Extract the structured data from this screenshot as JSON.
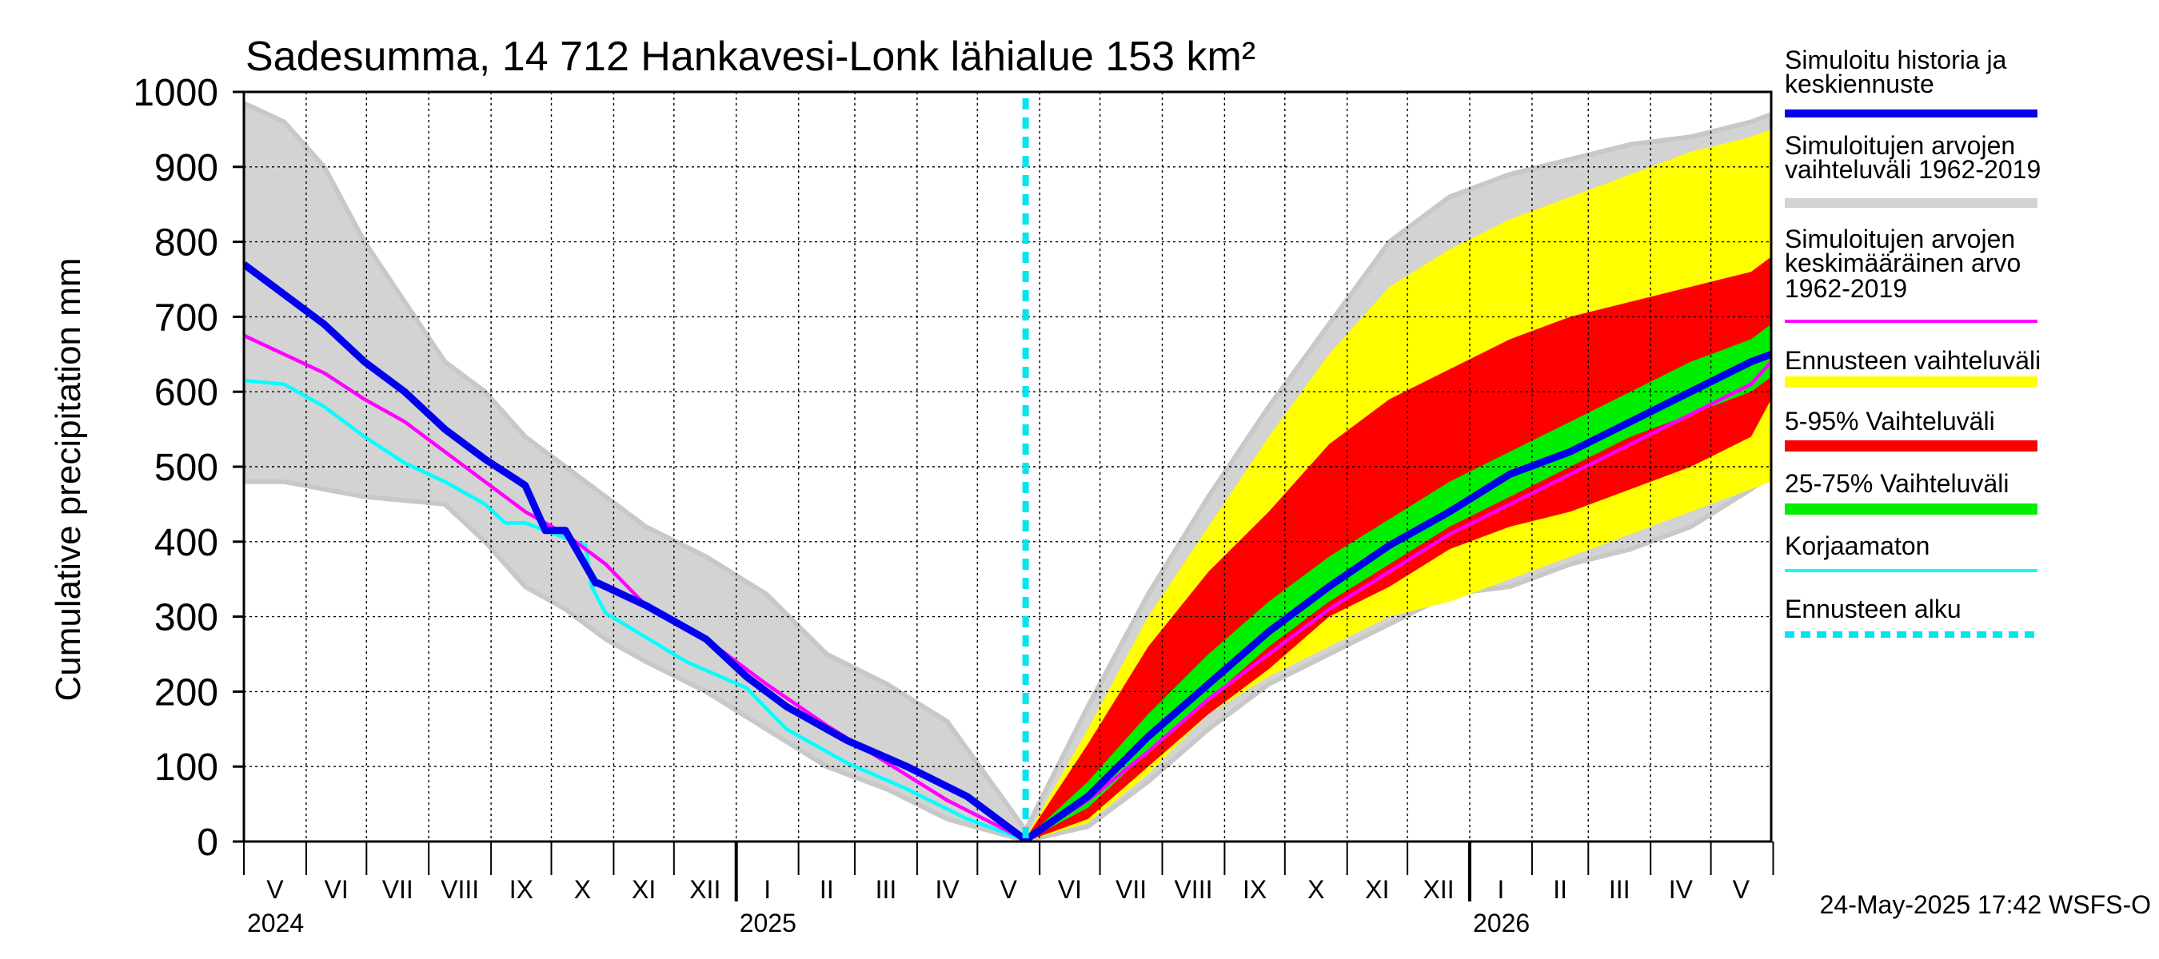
{
  "colors": {
    "forecast_mean": "#0000ee",
    "historical_range": "#d3d3d3",
    "historical_mean": "#ff00ff",
    "forecast_range": "#ffff00",
    "p5_95": "#ff0000",
    "p25_75": "#00ee00",
    "uncorrected": "#00ffff",
    "forecast_start": "#00e5ee"
  },
  "chart_data": {
    "type": "line",
    "title": "Sadesumma, 14 712 Hankavesi-Lonk lähialue 153 km²",
    "ylabel": "Cumulative precipitation   mm",
    "ylim": [
      0,
      1000
    ],
    "yticks": [
      "0",
      "100",
      "200",
      "300",
      "400",
      "500",
      "600",
      "700",
      "800",
      "900",
      "1000"
    ],
    "months": [
      "V",
      "VI",
      "VII",
      "VIII",
      "IX",
      "X",
      "XI",
      "XII",
      "I",
      "II",
      "III",
      "IV",
      "V",
      "VI",
      "VII",
      "VIII",
      "IX",
      "X",
      "XI",
      "XII",
      "I",
      "II",
      "III",
      "IV",
      "V"
    ],
    "years": [
      "2024",
      "2025",
      "2026"
    ],
    "timestamp": "24-May-2025 17:42 WSFS-O",
    "forecast_start_day": 389,
    "legend": [
      "Simuloitu historia ja keskiennuste",
      "Simuloitujen arvojen vaihteluväli 1962-2019",
      "Simuloitujen arvojen keskimääräinen arvo 1962-2019",
      "Ennusteen vaihteluväli",
      "5-95% Vaihteluväli",
      "25-75% Vaihteluväli",
      "Korjaamaton",
      "Ennusteen alku"
    ],
    "series": [
      {
        "name": "Simuloitu historia ja keskiennuste",
        "days": [
          0,
          20,
          40,
          60,
          80,
          100,
          120,
          140,
          150,
          160,
          175,
          176,
          200,
          230,
          250,
          270,
          300,
          330,
          360,
          389,
          420,
          450,
          480,
          510,
          540,
          570,
          600,
          630,
          660,
          690,
          720,
          750,
          760
        ],
        "values": [
          770,
          730,
          690,
          640,
          600,
          550,
          510,
          475,
          415,
          415,
          345,
          345,
          315,
          270,
          220,
          180,
          135,
          100,
          60,
          2,
          60,
          140,
          210,
          280,
          340,
          395,
          440,
          490,
          520,
          560,
          600,
          640,
          650
        ]
      },
      {
        "name": "Simuloitujen arvojen keskimääräinen arvo 1962-2019",
        "days": [
          0,
          20,
          40,
          60,
          80,
          100,
          120,
          140,
          160,
          180,
          200,
          230,
          260,
          290,
          320,
          350,
          389,
          420,
          450,
          480,
          510,
          540,
          570,
          600,
          630,
          660,
          690,
          720,
          750,
          760
        ],
        "values": [
          675,
          650,
          625,
          590,
          560,
          520,
          480,
          440,
          410,
          370,
          315,
          270,
          210,
          155,
          105,
          55,
          2,
          55,
          120,
          190,
          250,
          310,
          360,
          410,
          450,
          490,
          530,
          570,
          610,
          640
        ]
      },
      {
        "name": "Korjaamaton",
        "days": [
          0,
          20,
          40,
          60,
          80,
          100,
          120,
          130,
          140,
          170,
          173,
          180,
          220,
          250,
          270,
          300,
          330,
          360,
          389
        ],
        "values": [
          615,
          610,
          580,
          540,
          505,
          480,
          450,
          425,
          425,
          395,
          340,
          305,
          240,
          205,
          150,
          105,
          70,
          30,
          2
        ]
      }
    ],
    "bands": [
      {
        "name": "Simuloitujen arvojen vaihteluväli 1962-2019",
        "days": [
          0,
          20,
          40,
          60,
          80,
          100,
          120,
          140,
          160,
          180,
          200,
          230,
          260,
          290,
          320,
          350,
          389,
          420,
          450,
          480,
          510,
          540,
          570,
          600,
          630,
          660,
          690,
          720,
          750,
          760
        ],
        "upper": [
          985,
          960,
          900,
          800,
          720,
          640,
          600,
          540,
          500,
          460,
          420,
          380,
          330,
          250,
          210,
          160,
          15,
          180,
          330,
          460,
          580,
          690,
          800,
          860,
          890,
          910,
          930,
          940,
          960,
          970
        ],
        "lower": [
          480,
          480,
          470,
          460,
          455,
          450,
          400,
          340,
          310,
          270,
          240,
          200,
          150,
          100,
          70,
          30,
          1,
          20,
          80,
          150,
          210,
          250,
          290,
          330,
          340,
          370,
          390,
          420,
          470,
          490
        ]
      },
      {
        "name": "Ennusteen vaihteluväli",
        "days": [
          389,
          420,
          450,
          480,
          510,
          540,
          570,
          600,
          630,
          660,
          690,
          720,
          750,
          760
        ],
        "upper": [
          5,
          150,
          300,
          420,
          540,
          650,
          740,
          790,
          830,
          860,
          890,
          920,
          940,
          950
        ],
        "lower": [
          0,
          25,
          90,
          170,
          220,
          260,
          300,
          320,
          350,
          380,
          410,
          440,
          470,
          480
        ]
      },
      {
        "name": "5-95% Vaihteluväli",
        "days": [
          389,
          420,
          450,
          480,
          510,
          540,
          570,
          600,
          630,
          660,
          690,
          720,
          750,
          760
        ],
        "upper": [
          4,
          130,
          260,
          360,
          440,
          530,
          590,
          630,
          670,
          700,
          720,
          740,
          760,
          780
        ],
        "lower": [
          0,
          30,
          100,
          170,
          230,
          300,
          340,
          390,
          420,
          440,
          470,
          500,
          540,
          590
        ]
      },
      {
        "name": "25-75% Vaihteluväli",
        "days": [
          389,
          420,
          450,
          480,
          510,
          540,
          570,
          600,
          630,
          660,
          690,
          720,
          750,
          760
        ],
        "upper": [
          3,
          80,
          170,
          250,
          320,
          380,
          430,
          480,
          520,
          560,
          600,
          640,
          670,
          690
        ],
        "lower": [
          1,
          45,
          120,
          190,
          260,
          320,
          370,
          420,
          460,
          500,
          540,
          570,
          600,
          620
        ]
      }
    ]
  }
}
